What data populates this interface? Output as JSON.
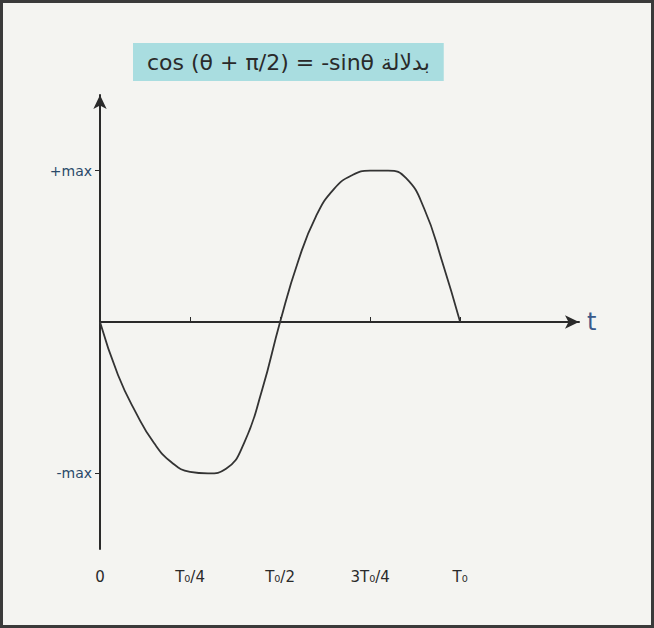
{
  "chart_data": {
    "type": "line",
    "title": "cos (θ + π/2) = -sinθ بدلالة",
    "x_label": "t",
    "x": [
      0,
      0.05,
      0.1,
      0.15,
      0.2,
      0.25,
      0.3,
      0.35,
      0.4,
      0.45,
      0.5,
      0.55,
      0.6,
      0.65,
      0.7,
      0.75,
      0.8,
      0.85,
      0.9,
      0.95,
      1
    ],
    "values": [
      0,
      -0.35,
      -0.6,
      -0.8,
      -0.93,
      -0.99,
      -1,
      -0.97,
      -0.8,
      -0.45,
      0,
      0.4,
      0.7,
      0.88,
      0.97,
      1,
      1,
      0.95,
      0.75,
      0.4,
      0
    ],
    "color": "#333333",
    "xlim": [
      0,
      1.33
    ],
    "xticks": [
      {
        "value": 0,
        "label": "0"
      },
      {
        "value": 0.25,
        "label": "T₀/4"
      },
      {
        "value": 0.5,
        "label": "T₀/2"
      },
      {
        "value": 0.75,
        "label": "3T₀/4"
      },
      {
        "value": 1,
        "label": "T₀"
      }
    ],
    "ylim": [
      -1.5,
      1.5
    ],
    "yticks": [
      {
        "value": -1,
        "label": "-max"
      },
      {
        "value": 1,
        "label": "+max"
      }
    ],
    "grid": false
  }
}
